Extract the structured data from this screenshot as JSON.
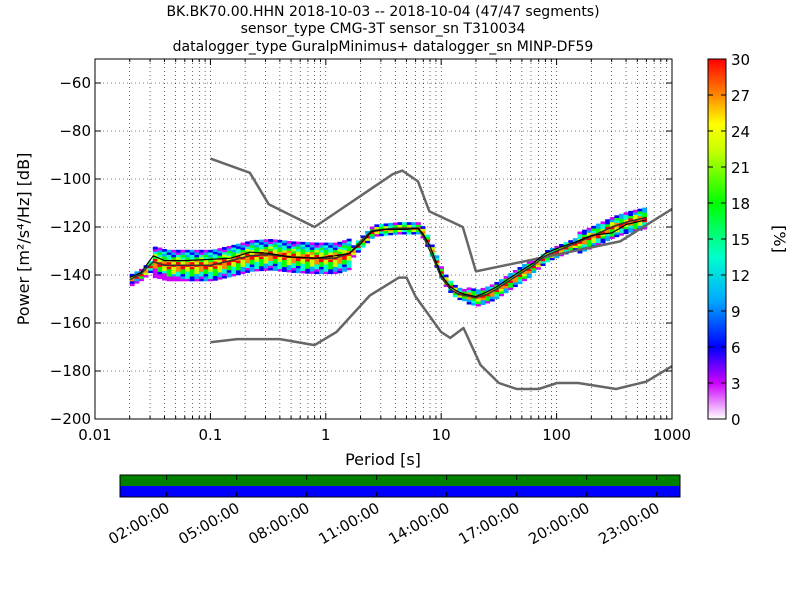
{
  "chart_data": {
    "type": "heatmap",
    "title_lines": [
      "BK.BK70.00.HHN   2018-10-03 -- 2018-10-04  (47/47 segments)",
      "sensor_type CMG-3T sensor_sn T310034",
      "datalogger_type GuralpMinimus+ datalogger_sn MINP-DF59"
    ],
    "xlabel": "Period [s]",
    "ylabel": "Power [m²/s⁴/Hz] [dB]",
    "x_scale": "log",
    "xlim": [
      0.01,
      1000
    ],
    "ylim": [
      -200,
      -50
    ],
    "x_ticks": [
      {
        "v": 0.01,
        "label": "0.01"
      },
      {
        "v": 0.1,
        "label": "0.1"
      },
      {
        "v": 1,
        "label": "1"
      },
      {
        "v": 10,
        "label": "10"
      },
      {
        "v": 100,
        "label": "100"
      },
      {
        "v": 1000,
        "label": "1000"
      }
    ],
    "y_ticks": [
      {
        "v": -60,
        "label": "−60"
      },
      {
        "v": -80,
        "label": "−80"
      },
      {
        "v": -100,
        "label": "−100"
      },
      {
        "v": -120,
        "label": "−120"
      },
      {
        "v": -140,
        "label": "−140"
      },
      {
        "v": -160,
        "label": "−160"
      },
      {
        "v": -180,
        "label": "−180"
      },
      {
        "v": -200,
        "label": "−200"
      }
    ],
    "grid": true,
    "colorbar": {
      "label": "[%]",
      "range": [
        0,
        30
      ],
      "ticks": [
        {
          "v": 0,
          "label": "0"
        },
        {
          "v": 3,
          "label": "3"
        },
        {
          "v": 6,
          "label": "6"
        },
        {
          "v": 9,
          "label": "9"
        },
        {
          "v": 12,
          "label": "12"
        },
        {
          "v": 15,
          "label": "15"
        },
        {
          "v": 18,
          "label": "18"
        },
        {
          "v": 21,
          "label": "21"
        },
        {
          "v": 24,
          "label": "24"
        },
        {
          "v": 27,
          "label": "27"
        },
        {
          "v": 30,
          "label": "30"
        }
      ]
    },
    "nhnm": {
      "x": [
        0.1,
        0.22,
        0.32,
        0.8,
        3.8,
        4.6,
        6.3,
        7.9,
        15.4,
        20,
        354.8,
        1000
      ],
      "y": [
        -91.5,
        -97.4,
        -110.5,
        -120,
        -98,
        -96.5,
        -101,
        -113.5,
        -120,
        -138.5,
        -126,
        -112.5
      ]
    },
    "nlnm": {
      "x": [
        0.1,
        0.17,
        0.4,
        0.8,
        1.24,
        2.4,
        4.3,
        5,
        6,
        10,
        12,
        15.6,
        21.9,
        31.6,
        45,
        70,
        101,
        154,
        328,
        600,
        1000
      ],
      "y": [
        -168,
        -166.7,
        -166.7,
        -169.2,
        -163.7,
        -148.6,
        -141.1,
        -141.1,
        -149,
        -163.8,
        -166.2,
        -162.1,
        -177.5,
        -185,
        -187.5,
        -187.5,
        -185,
        -185,
        -187.5,
        -184.4,
        -178
      ]
    },
    "median": {
      "x": [
        0.02,
        0.025,
        0.032,
        0.04,
        0.06,
        0.1,
        0.15,
        0.22,
        0.32,
        0.5,
        0.8,
        1.2,
        1.6,
        2,
        2.5,
        3.2,
        4,
        5,
        6.3,
        7,
        8,
        10,
        12,
        14,
        16,
        20,
        25,
        30,
        40,
        50,
        63,
        80,
        100,
        150,
        200,
        300,
        400,
        600
      ],
      "y": [
        -141,
        -139,
        -132,
        -134,
        -134,
        -133.5,
        -133,
        -130.5,
        -131,
        -132.5,
        -133,
        -132,
        -131,
        -127,
        -122,
        -121,
        -121,
        -121,
        -120.5,
        -123,
        -128,
        -140,
        -145,
        -147,
        -148,
        -149,
        -147,
        -145,
        -141,
        -138,
        -135,
        -131,
        -129,
        -126,
        -123.5,
        -122.5,
        -119,
        -117
      ]
    },
    "mode": {
      "x": [
        0.02,
        0.025,
        0.032,
        0.04,
        0.06,
        0.1,
        0.15,
        0.22,
        0.32,
        0.5,
        0.8,
        1.2,
        1.6,
        2,
        2.5,
        3.2,
        4,
        5,
        6.3,
        7,
        8,
        10,
        12,
        14,
        16,
        20,
        25,
        30,
        40,
        50,
        63,
        80,
        100,
        150,
        200,
        300,
        400,
        600
      ],
      "y": [
        -142,
        -139.5,
        -134.5,
        -136,
        -136,
        -136,
        -134,
        -132,
        -131.5,
        -132.5,
        -133,
        -133,
        -131,
        -126,
        -121.5,
        -121,
        -120.5,
        -120.5,
        -120.5,
        -124,
        -130,
        -141,
        -146,
        -148,
        -148.5,
        -149.5,
        -148,
        -146,
        -142,
        -139,
        -136,
        -132,
        -130,
        -126.5,
        -124,
        -120,
        -118,
        -116
      ]
    },
    "availability": {
      "tick_labels": [
        "02:00:00",
        "05:00:00",
        "08:00:00",
        "11:00:00",
        "14:00:00",
        "17:00:00",
        "20:00:00",
        "23:00:00"
      ],
      "tick_hours": [
        2,
        5,
        8,
        11,
        14,
        17,
        20,
        23
      ],
      "span_hours": [
        0,
        24
      ],
      "rows": [
        {
          "color": "#008000"
        },
        {
          "color": "#0000ff"
        }
      ]
    }
  }
}
